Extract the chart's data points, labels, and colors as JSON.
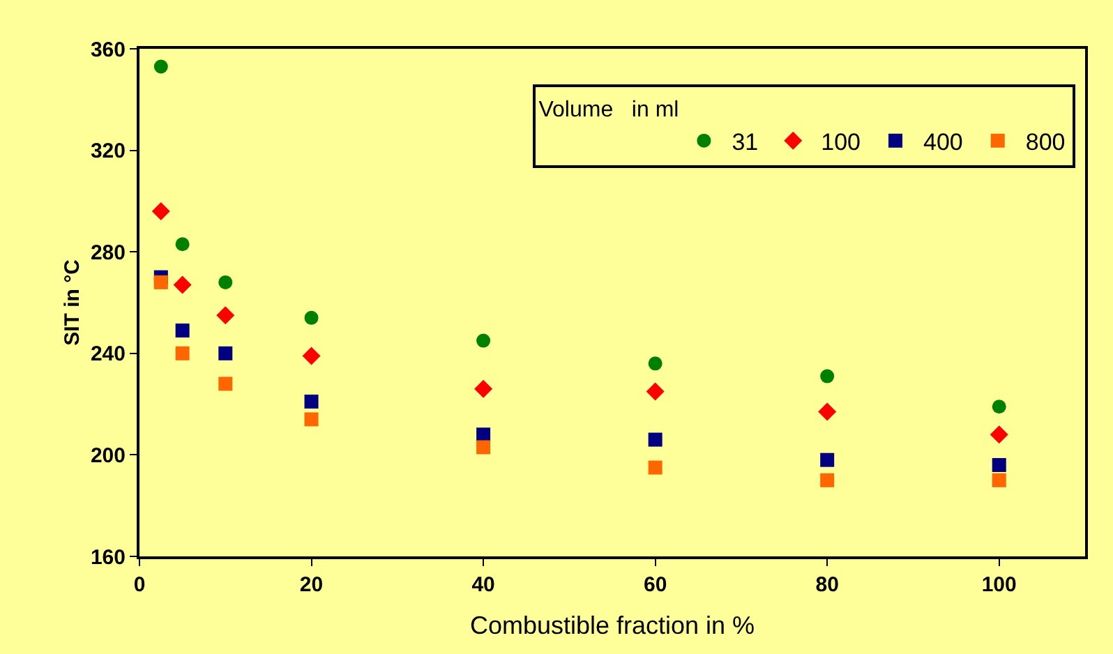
{
  "chart_data": {
    "type": "scatter",
    "xlabel": "Combustible fraction in %",
    "ylabel": "SIT in °C",
    "legend_title": "Volume   in ml",
    "x": [
      2.5,
      5,
      10,
      20,
      40,
      60,
      80,
      100
    ],
    "series": [
      {
        "name": "31",
        "color": "#008000",
        "marker": "circle",
        "values": [
          353,
          283,
          268,
          254,
          245,
          236,
          231,
          219
        ]
      },
      {
        "name": "100",
        "color": "#ff0000",
        "marker": "diamond",
        "values": [
          296,
          267,
          255,
          239,
          226,
          225,
          217,
          208
        ]
      },
      {
        "name": "400",
        "color": "#000080",
        "marker": "square",
        "values": [
          270,
          249,
          240,
          221,
          208,
          206,
          198,
          196
        ]
      },
      {
        "name": "800",
        "color": "#ff6600",
        "marker": "square",
        "values": [
          268,
          240,
          228,
          214,
          203,
          195,
          190,
          190
        ]
      }
    ],
    "xlim": [
      0,
      110
    ],
    "xticks": [
      0,
      20,
      40,
      60,
      80,
      100
    ],
    "ylim": [
      160,
      360
    ],
    "yticks": [
      160,
      200,
      240,
      280,
      320,
      360
    ],
    "grid": false,
    "legend": "top right"
  }
}
